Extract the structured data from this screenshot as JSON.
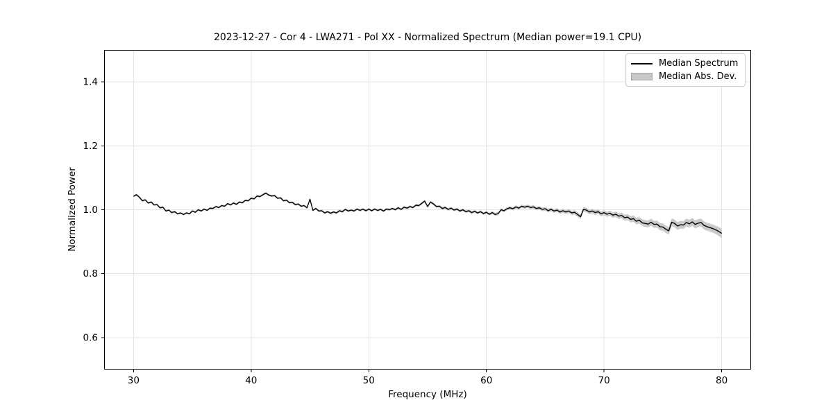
{
  "chart_data": {
    "type": "line",
    "title": "2023-12-27 - Cor 4 - LWA271 - Pol XX - Normalized Spectrum (Median power=19.1 CPU)",
    "xlabel": "Frequency (MHz)",
    "ylabel": "Normalized Power",
    "xlim": [
      27.5,
      82.5
    ],
    "ylim": [
      0.5,
      1.5
    ],
    "grid": true,
    "grid_color": "#e4e4e4",
    "axis_color": "#000000",
    "xticks": [
      {
        "value": 30,
        "label": "30"
      },
      {
        "value": 40,
        "label": "40"
      },
      {
        "value": 50,
        "label": "50"
      },
      {
        "value": 60,
        "label": "60"
      },
      {
        "value": 70,
        "label": "70"
      },
      {
        "value": 80,
        "label": "80"
      }
    ],
    "yticks": [
      {
        "value": 0.6,
        "label": "0.6"
      },
      {
        "value": 0.8,
        "label": "0.8"
      },
      {
        "value": 1.0,
        "label": "1.0"
      },
      {
        "value": 1.2,
        "label": "1.2"
      },
      {
        "value": 1.4,
        "label": "1.4"
      }
    ],
    "legend": {
      "position": "upper right",
      "entries": [
        {
          "label": "Median Spectrum",
          "type": "line",
          "color": "#000000"
        },
        {
          "label": "Median Abs. Dev.",
          "type": "patch",
          "color": "#c8c8c8",
          "edge_color": "#a6a6a6"
        }
      ]
    },
    "series": [
      {
        "name": "Median Spectrum",
        "color": "#000000",
        "x_start": 30.0,
        "x_step": 0.25,
        "x_unit": "MHz",
        "y": [
          1.042,
          1.047,
          1.039,
          1.028,
          1.031,
          1.021,
          1.024,
          1.015,
          1.016,
          1.006,
          1.008,
          0.996,
          0.999,
          0.991,
          0.994,
          0.987,
          0.99,
          0.985,
          0.99,
          0.987,
          0.996,
          0.992,
          1.0,
          0.996,
          1.002,
          0.998,
          1.005,
          1.004,
          1.01,
          1.007,
          1.013,
          1.011,
          1.019,
          1.015,
          1.021,
          1.017,
          1.024,
          1.022,
          1.029,
          1.028,
          1.036,
          1.034,
          1.043,
          1.041,
          1.047,
          1.052,
          1.046,
          1.043,
          1.044,
          1.036,
          1.037,
          1.028,
          1.03,
          1.022,
          1.023,
          1.016,
          1.018,
          1.011,
          1.013,
          1.006,
          1.033,
          0.998,
          1.004,
          0.996,
          0.997,
          0.99,
          0.994,
          0.989,
          0.993,
          0.99,
          0.997,
          0.994,
          1.001,
          0.996,
          0.999,
          0.996,
          1.002,
          0.998,
          1.002,
          0.997,
          1.002,
          0.997,
          1.002,
          0.998,
          1.001,
          0.996,
          1.002,
          1.0,
          1.004,
          1.0,
          1.006,
          1.001,
          1.008,
          1.005,
          1.01,
          1.007,
          1.014,
          1.013,
          1.02,
          1.027,
          1.01,
          1.024,
          1.018,
          1.01,
          1.011,
          1.004,
          1.007,
          1.001,
          1.005,
          0.999,
          1.002,
          0.996,
          1.0,
          0.994,
          0.997,
          0.991,
          0.995,
          0.99,
          0.994,
          0.988,
          0.992,
          0.986,
          0.991,
          0.985,
          0.988,
          1.0,
          0.997,
          1.003,
          1.006,
          1.003,
          1.009,
          1.005,
          1.011,
          1.008,
          1.011,
          1.007,
          1.009,
          1.004,
          1.006,
          1.001,
          1.003,
          0.997,
          1.001,
          0.996,
          0.999,
          0.993,
          0.997,
          0.993,
          0.996,
          0.99,
          0.992,
          0.985,
          0.978,
          1.001,
          0.999,
          0.993,
          0.996,
          0.991,
          0.994,
          0.987,
          0.991,
          0.986,
          0.989,
          0.983,
          0.986,
          0.98,
          0.982,
          0.975,
          0.977,
          0.97,
          0.972,
          0.964,
          0.967,
          0.959,
          0.957,
          0.955,
          0.961,
          0.954,
          0.955,
          0.947,
          0.946,
          0.939,
          0.934,
          0.961,
          0.957,
          0.949,
          0.953,
          0.952,
          0.96,
          0.956,
          0.962,
          0.954,
          0.958,
          0.96,
          0.951,
          0.947,
          0.944,
          0.941,
          0.937,
          0.932,
          0.926
        ]
      },
      {
        "name": "Median Abs. Dev.",
        "band_around": "Median Spectrum",
        "color": "#cbcbcb",
        "half_width": {
          "x": [
            30,
            45,
            55,
            60,
            63,
            65,
            66,
            67,
            68,
            69,
            70,
            71,
            72,
            73,
            74,
            75,
            76,
            77,
            78,
            79,
            79.5,
            80
          ],
          "v": [
            0.003,
            0.0035,
            0.004,
            0.0045,
            0.005,
            0.0055,
            0.006,
            0.0065,
            0.007,
            0.0075,
            0.008,
            0.0085,
            0.0095,
            0.0105,
            0.011,
            0.0115,
            0.012,
            0.0125,
            0.0125,
            0.0125,
            0.013,
            0.015
          ]
        }
      }
    ]
  }
}
